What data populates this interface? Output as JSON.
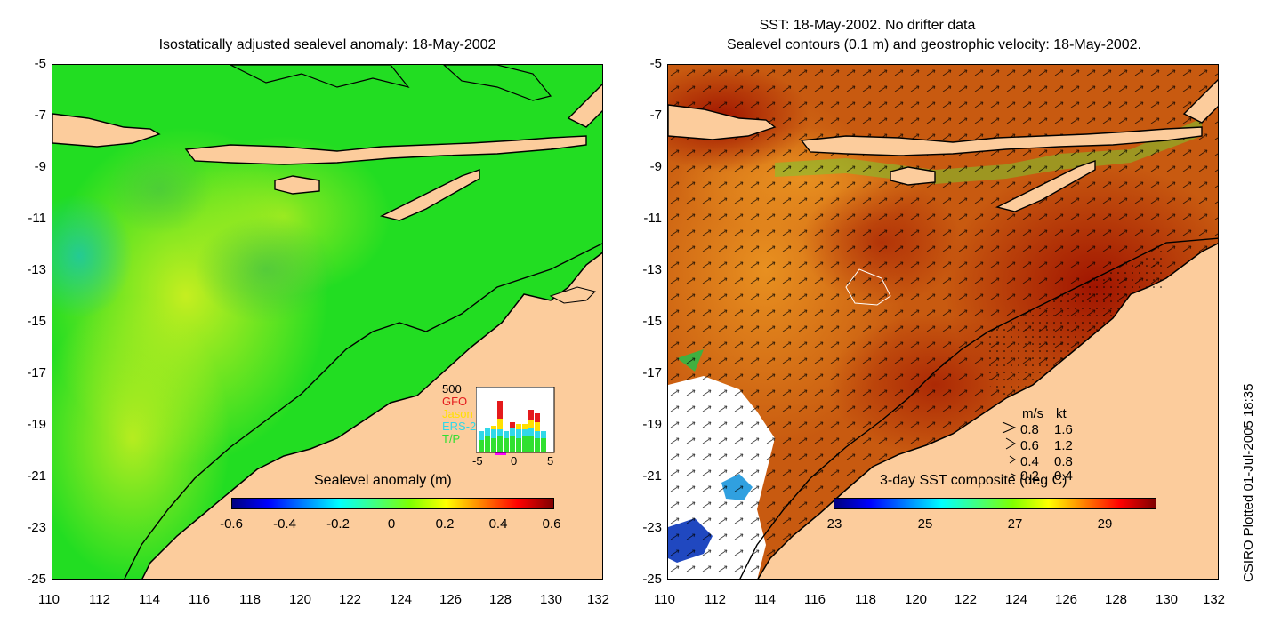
{
  "left_panel": {
    "title": "Isostatically adjusted sealevel anomaly: 18-May-2002",
    "x_ticks": [
      "110",
      "112",
      "114",
      "116",
      "118",
      "120",
      "122",
      "124",
      "126",
      "128",
      "130",
      "132"
    ],
    "y_ticks": [
      "-5",
      "-7",
      "-9",
      "-11",
      "-13",
      "-15",
      "-17",
      "-19",
      "-21",
      "-23",
      "-25"
    ],
    "colorbar": {
      "title": "Sealevel anomaly (m)",
      "labels": [
        "-0.6",
        "-0.4",
        "-0.2",
        "0",
        "0.2",
        "0.4",
        "0.6"
      ]
    },
    "inset": {
      "count_label": "500",
      "series": [
        {
          "name": "GFO",
          "color": "#e41a1c"
        },
        {
          "name": "Jason",
          "color": "#ffe000"
        },
        {
          "name": "ERS-2",
          "color": "#30d8e8"
        },
        {
          "name": "T/P",
          "color": "#30e030"
        }
      ],
      "x_labels": [
        "-5",
        "0",
        "5"
      ]
    }
  },
  "right_panel": {
    "title_line1": "SST: 18-May-2002. No drifter data",
    "title_line2": "Sealevel contours (0.1 m) and geostrophic velocity: 18-May-2002.",
    "x_ticks": [
      "110",
      "112",
      "114",
      "116",
      "118",
      "120",
      "122",
      "124",
      "126",
      "128",
      "130",
      "132"
    ],
    "y_ticks": [
      "-5",
      "-7",
      "-9",
      "-11",
      "-13",
      "-15",
      "-17",
      "-19",
      "-21",
      "-23",
      "-25"
    ],
    "colorbar": {
      "title": "3-day SST composite (deg C)",
      "labels": [
        "23",
        "25",
        "27",
        "29"
      ]
    },
    "velocity_legend": {
      "header_ms": "m/s",
      "header_kt": "kt",
      "rows": [
        {
          "ms": "0.8",
          "kt": "1.6"
        },
        {
          "ms": "0.6",
          "kt": "1.2"
        },
        {
          "ms": "0.4",
          "kt": "0.8"
        },
        {
          "ms": "0.2",
          "kt": "0.4"
        }
      ]
    }
  },
  "credit": "CSIRO Plotted 01-Jul-2005 18:35",
  "colors": {
    "land": "#fccc9c",
    "sla_base": "#22dd22",
    "sst_base": "#c85a10"
  }
}
